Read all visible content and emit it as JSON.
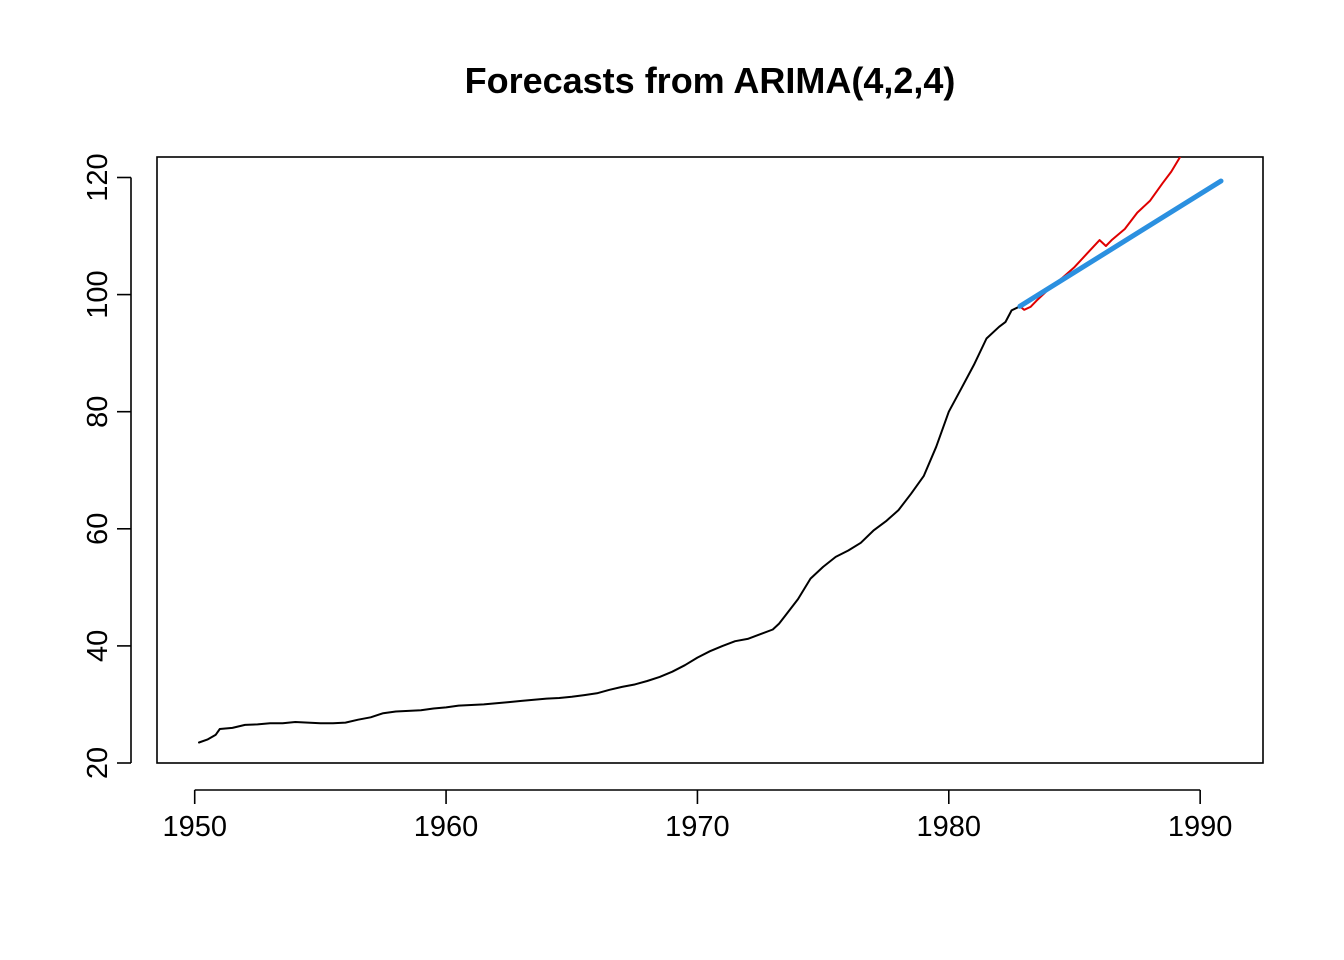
{
  "chart_data": {
    "type": "line",
    "title": "Forecasts from ARIMA(4,2,4)",
    "xlabel": "",
    "ylabel": "",
    "xlim": [
      1948.5,
      1992.5
    ],
    "ylim": [
      20,
      123.5
    ],
    "x_ticks": [
      1950,
      1960,
      1970,
      1980,
      1990
    ],
    "y_ticks": [
      20,
      40,
      60,
      80,
      100,
      120
    ],
    "grid": false,
    "legend": "none",
    "series": [
      {
        "color": "#000000",
        "width": 2,
        "points": [
          [
            1950.17,
            23.5
          ],
          [
            1950.5,
            24.0
          ],
          [
            1950.83,
            24.8
          ],
          [
            1951.0,
            25.8
          ],
          [
            1951.5,
            26.0
          ],
          [
            1952.0,
            26.5
          ],
          [
            1952.5,
            26.6
          ],
          [
            1953.0,
            26.8
          ],
          [
            1953.5,
            26.8
          ],
          [
            1954.0,
            27.0
          ],
          [
            1954.5,
            26.9
          ],
          [
            1955.0,
            26.8
          ],
          [
            1955.5,
            26.8
          ],
          [
            1956.0,
            26.9
          ],
          [
            1956.5,
            27.4
          ],
          [
            1957.0,
            27.8
          ],
          [
            1957.5,
            28.5
          ],
          [
            1958.0,
            28.8
          ],
          [
            1958.5,
            28.9
          ],
          [
            1959.0,
            29.0
          ],
          [
            1959.5,
            29.3
          ],
          [
            1960.0,
            29.5
          ],
          [
            1960.5,
            29.8
          ],
          [
            1961.0,
            29.9
          ],
          [
            1961.5,
            30.0
          ],
          [
            1962.0,
            30.2
          ],
          [
            1962.5,
            30.4
          ],
          [
            1963.0,
            30.6
          ],
          [
            1963.5,
            30.8
          ],
          [
            1964.0,
            31.0
          ],
          [
            1964.5,
            31.1
          ],
          [
            1965.0,
            31.3
          ],
          [
            1965.5,
            31.6
          ],
          [
            1966.0,
            31.9
          ],
          [
            1966.5,
            32.5
          ],
          [
            1967.0,
            33.0
          ],
          [
            1967.5,
            33.4
          ],
          [
            1968.0,
            34.0
          ],
          [
            1968.5,
            34.7
          ],
          [
            1969.0,
            35.6
          ],
          [
            1969.5,
            36.7
          ],
          [
            1970.0,
            38.0
          ],
          [
            1970.5,
            39.1
          ],
          [
            1971.0,
            40.0
          ],
          [
            1971.5,
            40.8
          ],
          [
            1972.0,
            41.2
          ],
          [
            1972.5,
            42.0
          ],
          [
            1973.0,
            42.8
          ],
          [
            1973.25,
            43.8
          ],
          [
            1973.5,
            45.2
          ],
          [
            1974.0,
            48.0
          ],
          [
            1974.5,
            51.5
          ],
          [
            1975.0,
            53.5
          ],
          [
            1975.5,
            55.2
          ],
          [
            1976.0,
            56.3
          ],
          [
            1976.5,
            57.6
          ],
          [
            1977.0,
            59.7
          ],
          [
            1977.5,
            61.3
          ],
          [
            1978.0,
            63.2
          ],
          [
            1978.5,
            66.0
          ],
          [
            1979.0,
            69.0
          ],
          [
            1979.5,
            74.0
          ],
          [
            1980.0,
            80.0
          ],
          [
            1980.5,
            84.0
          ],
          [
            1981.0,
            88.0
          ],
          [
            1981.5,
            92.5
          ],
          [
            1982.0,
            94.5
          ],
          [
            1982.25,
            95.3
          ],
          [
            1982.5,
            97.3
          ],
          [
            1982.83,
            98.0
          ]
        ]
      },
      {
        "color": "#df0000",
        "width": 2,
        "points": [
          [
            1982.83,
            98.0
          ],
          [
            1983.0,
            97.4
          ],
          [
            1983.25,
            97.9
          ],
          [
            1983.5,
            99.0
          ],
          [
            1984.0,
            101.0
          ],
          [
            1984.5,
            102.8
          ],
          [
            1985.0,
            104.7
          ],
          [
            1985.5,
            107.0
          ],
          [
            1986.0,
            109.3
          ],
          [
            1986.25,
            108.3
          ],
          [
            1986.5,
            109.4
          ],
          [
            1987.0,
            111.2
          ],
          [
            1987.5,
            114.0
          ],
          [
            1988.0,
            116.0
          ],
          [
            1988.5,
            119.0
          ],
          [
            1988.85,
            121.0
          ],
          [
            1989.2,
            123.5
          ]
        ]
      },
      {
        "color": "#2b90e0",
        "width": 5,
        "points": [
          [
            1982.83,
            98.0
          ],
          [
            1990.83,
            119.4
          ]
        ]
      }
    ]
  }
}
